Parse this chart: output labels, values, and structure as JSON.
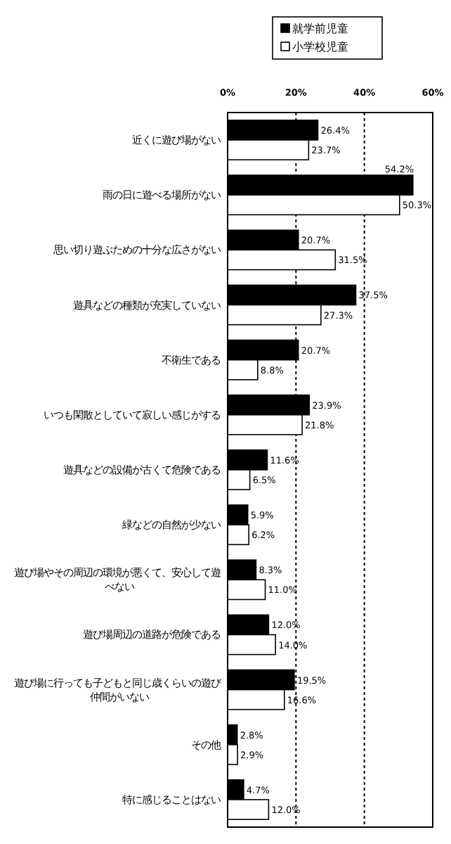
{
  "chart_data": {
    "type": "bar",
    "orientation": "horizontal",
    "categories": [
      "近くに遊び場がない",
      "雨の日に遊べる場所がない",
      "思い切り遊ぶための十分な広さがない",
      "遊具などの種類が充実していない",
      "不衛生である",
      "いつも閑散としていて寂しい感じがする",
      "遊具などの設備が古くて危険である",
      "緑などの自然が少ない",
      "遊び場やその周辺の環境が悪くて、安心して遊べない",
      "遊び場周辺の道路が危険である",
      "遊び場に行っても子どもと同じ歳くらいの遊び仲間がいない",
      "その他",
      "特に感じることはない"
    ],
    "series": [
      {
        "name": "就学前児童",
        "color": "#000000",
        "values": [
          26.4,
          54.2,
          20.7,
          37.5,
          20.7,
          23.9,
          11.6,
          5.9,
          8.3,
          12.0,
          19.5,
          2.8,
          4.7
        ],
        "value_labels": [
          "26.4%",
          "54.2%",
          "20.7%",
          "37.5%",
          "20.7%",
          "23.9%",
          "11.6%",
          "5.9%",
          "8.3%",
          "12.0%",
          "19.5%",
          "2.8%",
          "4.7%"
        ]
      },
      {
        "name": "小学校児童",
        "color": "#ffffff",
        "values": [
          23.7,
          50.3,
          31.5,
          27.3,
          8.8,
          21.8,
          6.5,
          6.2,
          11.0,
          14.0,
          16.6,
          2.9,
          12.0
        ],
        "value_labels": [
          "23.7%",
          "50.3%",
          "31.5%",
          "27.3%",
          "8.8%",
          "21.8%",
          "6.5%",
          "6.2%",
          "11.0%",
          "14.0%",
          "16.6%",
          "2.9%",
          "12.0%"
        ]
      }
    ],
    "xlim": [
      0,
      60
    ],
    "xticks": [
      {
        "value": 0,
        "label": "0%"
      },
      {
        "value": 20,
        "label": "20%"
      },
      {
        "value": 40,
        "label": "40%"
      },
      {
        "value": 60,
        "label": "60%"
      }
    ],
    "grid": "x",
    "legend": "top"
  }
}
